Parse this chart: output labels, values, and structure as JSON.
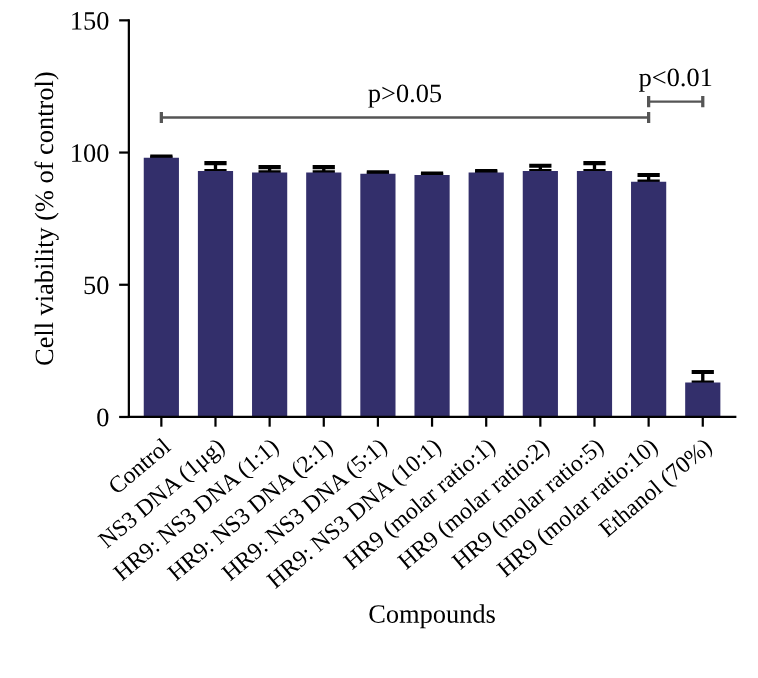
{
  "chart_data": {
    "type": "bar",
    "xlabel": "Compounds",
    "ylabel": "Cell viability (% of control)",
    "categories": [
      "Control",
      "NS3 DNA (1μg)",
      "HR9: NS3 DNA (1:1)",
      "HR9: NS3 DNA (2:1)",
      "HR9: NS3 DNA (5:1)",
      "HR9: NS3 DNA (10:1)",
      "HR9 (molar ratio:1)",
      "HR9 (molar ratio:2)",
      "HR9 (molar ratio:5)",
      "HR9 (molar ratio:10)",
      "Ethanol (70%)"
    ],
    "values": [
      98,
      93,
      92.5,
      92.5,
      92,
      91.5,
      92.5,
      93,
      93,
      89,
      13
    ],
    "errors": [
      0.5,
      3,
      2,
      2,
      0.5,
      0.5,
      0.5,
      2,
      3,
      2.5,
      4
    ],
    "color": "#332f6b",
    "ylim": [
      0,
      150
    ],
    "yticks": [
      0,
      50,
      100,
      150
    ],
    "grid": false,
    "annotations": [
      "p>0.05",
      "p<0.01"
    ]
  }
}
